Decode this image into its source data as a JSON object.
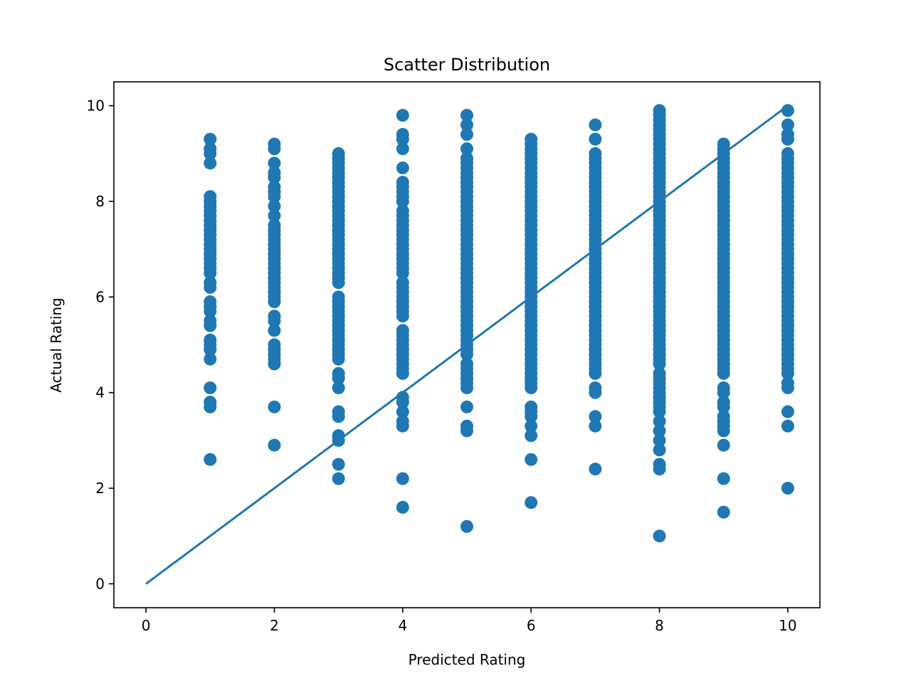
{
  "chart_data": {
    "type": "scatter",
    "title": "Scatter Distribution",
    "xlabel": "Predicted Rating",
    "ylabel": "Actual Rating",
    "xlim": [
      -0.5,
      10.5
    ],
    "ylim": [
      -0.5,
      10.5
    ],
    "xticks": [
      0,
      2,
      4,
      6,
      8,
      10
    ],
    "yticks": [
      0,
      2,
      4,
      6,
      8,
      10
    ],
    "grid": false,
    "color": "#1f77b4",
    "reference_line": {
      "x": [
        0,
        10
      ],
      "y": [
        0,
        10
      ]
    },
    "points": [
      {
        "x": 1,
        "y": [
          9.3,
          9.1,
          9.0,
          8.8,
          8.1,
          8.0,
          7.9,
          7.8,
          7.7,
          7.6,
          7.5,
          7.4,
          7.3,
          7.2,
          7.1,
          7.0,
          6.9,
          6.8,
          6.7,
          6.6,
          6.5,
          6.3,
          6.2,
          5.9,
          5.8,
          5.7,
          5.5,
          5.4,
          5.1,
          5.0,
          4.9,
          4.7,
          4.1,
          3.8,
          3.7,
          2.6
        ]
      },
      {
        "x": 2,
        "y": [
          9.2,
          9.1,
          8.8,
          8.6,
          8.5,
          8.3,
          8.2,
          8.1,
          7.9,
          7.7,
          7.5,
          7.4,
          7.3,
          7.2,
          7.1,
          7.0,
          6.9,
          6.8,
          6.7,
          6.6,
          6.5,
          6.4,
          6.3,
          6.2,
          6.1,
          6.0,
          5.9,
          5.6,
          5.5,
          5.3,
          5.0,
          4.9,
          4.8,
          4.7,
          4.6,
          3.7,
          2.9
        ]
      },
      {
        "x": 3,
        "y": [
          9.0,
          8.9,
          8.8,
          8.7,
          8.6,
          8.5,
          8.4,
          8.3,
          8.2,
          8.1,
          8.0,
          7.9,
          7.8,
          7.7,
          7.6,
          7.5,
          7.4,
          7.3,
          7.2,
          7.1,
          7.0,
          6.9,
          6.8,
          6.7,
          6.6,
          6.5,
          6.4,
          6.3,
          6.0,
          5.9,
          5.8,
          5.7,
          5.6,
          5.5,
          5.4,
          5.3,
          5.2,
          5.1,
          5.0,
          4.9,
          4.8,
          4.7,
          4.4,
          4.3,
          4.1,
          3.6,
          3.5,
          3.1,
          3.0,
          2.5,
          2.2
        ]
      },
      {
        "x": 4,
        "y": [
          9.8,
          9.4,
          9.3,
          9.1,
          8.7,
          8.4,
          8.3,
          8.2,
          8.1,
          8.0,
          7.8,
          7.7,
          7.6,
          7.5,
          7.4,
          7.3,
          7.2,
          7.1,
          7.0,
          6.9,
          6.8,
          6.7,
          6.6,
          6.5,
          6.3,
          6.2,
          6.1,
          6.0,
          5.9,
          5.8,
          5.7,
          5.6,
          5.3,
          5.2,
          5.1,
          5.0,
          4.9,
          4.8,
          4.7,
          4.6,
          4.5,
          4.4,
          3.9,
          3.8,
          3.6,
          3.4,
          3.3,
          2.2,
          1.6
        ]
      },
      {
        "x": 5,
        "y": [
          9.8,
          9.6,
          9.4,
          9.1,
          8.9,
          8.8,
          8.7,
          8.6,
          8.5,
          8.4,
          8.3,
          8.2,
          8.1,
          8.0,
          7.9,
          7.8,
          7.7,
          7.6,
          7.5,
          7.4,
          7.3,
          7.2,
          7.1,
          7.0,
          6.9,
          6.8,
          6.7,
          6.6,
          6.5,
          6.4,
          6.3,
          6.2,
          6.1,
          6.0,
          5.9,
          5.8,
          5.7,
          5.6,
          5.5,
          5.4,
          5.3,
          5.2,
          5.1,
          5.0,
          4.9,
          4.8,
          4.6,
          4.5,
          4.4,
          4.3,
          4.2,
          4.1,
          3.7,
          3.3,
          3.2,
          1.2
        ]
      },
      {
        "x": 6,
        "y": [
          9.3,
          9.2,
          9.1,
          9.0,
          8.9,
          8.8,
          8.7,
          8.6,
          8.5,
          8.4,
          8.3,
          8.2,
          8.1,
          8.0,
          7.9,
          7.8,
          7.7,
          7.6,
          7.5,
          7.4,
          7.3,
          7.2,
          7.1,
          7.0,
          6.9,
          6.8,
          6.7,
          6.6,
          6.5,
          6.4,
          6.3,
          6.2,
          6.1,
          6.0,
          5.9,
          5.8,
          5.7,
          5.6,
          5.5,
          5.4,
          5.3,
          5.2,
          5.1,
          5.0,
          4.9,
          4.8,
          4.7,
          4.6,
          4.5,
          4.4,
          4.3,
          4.2,
          4.1,
          3.7,
          3.6,
          3.5,
          3.3,
          3.1,
          2.6,
          1.7
        ]
      },
      {
        "x": 7,
        "y": [
          9.6,
          9.3,
          9.0,
          8.9,
          8.8,
          8.7,
          8.6,
          8.5,
          8.4,
          8.3,
          8.2,
          8.1,
          8.0,
          7.9,
          7.8,
          7.7,
          7.6,
          7.5,
          7.4,
          7.3,
          7.2,
          7.1,
          7.0,
          6.9,
          6.8,
          6.7,
          6.6,
          6.5,
          6.4,
          6.3,
          6.2,
          6.1,
          6.0,
          5.9,
          5.8,
          5.7,
          5.6,
          5.5,
          5.4,
          5.3,
          5.2,
          5.1,
          5.0,
          4.9,
          4.8,
          4.7,
          4.6,
          4.5,
          4.4,
          4.1,
          4.0,
          3.5,
          3.3,
          2.4
        ]
      },
      {
        "x": 8,
        "y": [
          9.9,
          9.8,
          9.7,
          9.6,
          9.5,
          9.4,
          9.3,
          9.2,
          9.1,
          9.0,
          8.9,
          8.8,
          8.7,
          8.6,
          8.5,
          8.4,
          8.3,
          8.2,
          8.1,
          8.0,
          7.9,
          7.8,
          7.7,
          7.6,
          7.5,
          7.4,
          7.3,
          7.2,
          7.1,
          7.0,
          6.9,
          6.8,
          6.7,
          6.6,
          6.5,
          6.4,
          6.3,
          6.2,
          6.1,
          6.0,
          5.9,
          5.8,
          5.7,
          5.6,
          5.5,
          5.4,
          5.3,
          5.2,
          5.1,
          5.0,
          4.9,
          4.8,
          4.7,
          4.6,
          4.4,
          4.3,
          4.2,
          4.1,
          4.0,
          3.9,
          3.8,
          3.7,
          3.6,
          3.4,
          3.2,
          3.0,
          2.8,
          2.5,
          2.4,
          1.0
        ]
      },
      {
        "x": 9,
        "y": [
          9.2,
          9.1,
          9.0,
          8.9,
          8.8,
          8.7,
          8.6,
          8.5,
          8.4,
          8.3,
          8.2,
          8.1,
          8.0,
          7.9,
          7.8,
          7.7,
          7.6,
          7.5,
          7.4,
          7.3,
          7.2,
          7.1,
          7.0,
          6.9,
          6.8,
          6.7,
          6.6,
          6.5,
          6.4,
          6.3,
          6.2,
          6.1,
          6.0,
          5.9,
          5.8,
          5.7,
          5.6,
          5.5,
          5.4,
          5.3,
          5.2,
          5.1,
          5.0,
          4.9,
          4.8,
          4.7,
          4.6,
          4.5,
          4.4,
          4.1,
          4.0,
          3.8,
          3.7,
          3.5,
          3.4,
          3.3,
          3.2,
          2.9,
          2.2,
          1.5
        ]
      },
      {
        "x": 10,
        "y": [
          9.9,
          9.6,
          9.4,
          9.3,
          9.0,
          8.9,
          8.8,
          8.7,
          8.6,
          8.5,
          8.4,
          8.3,
          8.2,
          8.1,
          8.0,
          7.9,
          7.8,
          7.7,
          7.6,
          7.5,
          7.4,
          7.3,
          7.2,
          7.1,
          7.0,
          6.9,
          6.8,
          6.7,
          6.6,
          6.5,
          6.4,
          6.3,
          6.2,
          6.1,
          6.0,
          5.9,
          5.8,
          5.7,
          5.6,
          5.5,
          5.4,
          5.3,
          5.2,
          5.1,
          5.0,
          4.9,
          4.8,
          4.7,
          4.6,
          4.5,
          4.4,
          4.2,
          4.1,
          3.6,
          3.3,
          2.0
        ]
      }
    ]
  }
}
